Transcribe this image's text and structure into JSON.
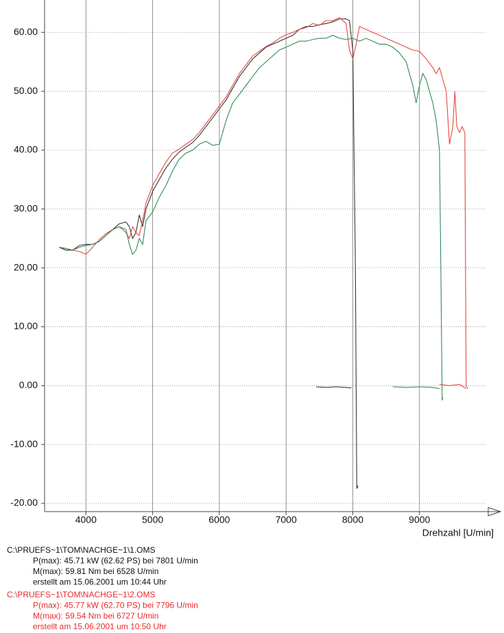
{
  "chart_data": {
    "type": "line",
    "x_label": "Drehzahl [U/min]",
    "xlim": [
      3380,
      10010
    ],
    "ylim": [
      -21.4,
      65.5
    ],
    "xticks": [
      4000,
      5000,
      6000,
      7000,
      8000,
      9000
    ],
    "yticks": [
      {
        "value": -20,
        "label": "-20.00"
      },
      {
        "value": -10,
        "label": "-10.00"
      },
      {
        "value": 0,
        "label": "0.00"
      },
      {
        "value": 10,
        "label": "10.00"
      },
      {
        "value": 20,
        "label": "20.00"
      },
      {
        "value": 30,
        "label": "30.00"
      },
      {
        "value": 40,
        "label": "40.00"
      },
      {
        "value": 50,
        "label": "50.00"
      },
      {
        "value": 60,
        "label": "60.00"
      }
    ],
    "grid": true,
    "series": [
      {
        "color": "#333333",
        "x": [
          3600,
          3700,
          3800,
          3900,
          4000,
          4100,
          4200,
          4300,
          4400,
          4500,
          4600,
          4650,
          4700,
          4750,
          4800,
          4850,
          4900,
          5000,
          5100,
          5200,
          5300,
          5400,
          5500,
          5600,
          5700,
          5800,
          5900,
          6000,
          6100,
          6200,
          6300,
          6400,
          6500,
          6600,
          6700,
          6800,
          6900,
          7000,
          7100,
          7200,
          7300,
          7400,
          7500,
          7600,
          7700,
          7800,
          7900,
          7950,
          8000,
          8040,
          8060,
          8080,
          null,
          7450,
          7600,
          7750,
          7900,
          7980
        ],
        "values": [
          23.5,
          23,
          23,
          23.8,
          24,
          24,
          24.5,
          25.5,
          26.5,
          27.5,
          27.8,
          27,
          25,
          26,
          29,
          27,
          30,
          33,
          35,
          37,
          38.5,
          39.7,
          40.5,
          41.3,
          42.5,
          44,
          45.5,
          47,
          48.5,
          50.5,
          52.5,
          54,
          55.5,
          56.5,
          57.5,
          58,
          58.5,
          59,
          59.5,
          60.5,
          61,
          61,
          61.3,
          61.5,
          61.8,
          62.3,
          62.3,
          62,
          57,
          20,
          -17.5,
          -17,
          null,
          -0.2,
          -0.3,
          -0.2,
          -0.3,
          -0.4
        ]
      },
      {
        "color": "#e8473c",
        "x": [
          3600,
          3700,
          3800,
          3900,
          4000,
          4100,
          4200,
          4300,
          4400,
          4500,
          4600,
          4650,
          4700,
          4750,
          4800,
          4850,
          4900,
          5000,
          5100,
          5200,
          5300,
          5400,
          5500,
          5600,
          5700,
          5800,
          5900,
          6000,
          6100,
          6200,
          6300,
          6400,
          6500,
          6600,
          6700,
          6800,
          6900,
          7000,
          7100,
          7200,
          7300,
          7400,
          7500,
          7600,
          7700,
          7800,
          7900,
          7950,
          8000,
          8050,
          8100,
          8200,
          8300,
          8400,
          8500,
          8600,
          8700,
          8800,
          8900,
          9000,
          9100,
          9200,
          9250,
          9300,
          9350,
          9400,
          9450,
          9500,
          9530,
          9560,
          9600,
          9640,
          9680,
          9700,
          9720,
          null,
          9300,
          9450,
          9600,
          9700
        ],
        "values": [
          23.5,
          23.3,
          23,
          22.8,
          22.3,
          23.5,
          24.8,
          25.8,
          26.5,
          27,
          26,
          25,
          27,
          26,
          25.5,
          28,
          31,
          34,
          36,
          38,
          39.5,
          40.2,
          41,
          41.8,
          43,
          44.5,
          46,
          47.5,
          49,
          51,
          53,
          54.5,
          56,
          56.8,
          57.6,
          58.2,
          59,
          59.6,
          60,
          60.5,
          60.8,
          61.5,
          61.2,
          62,
          62,
          62.5,
          61.5,
          57,
          55.5,
          58,
          61,
          60.5,
          60,
          59.5,
          59,
          58.5,
          58,
          57.5,
          57,
          56.8,
          55.5,
          54,
          53,
          54,
          52,
          50,
          41,
          44,
          50,
          44,
          43,
          44,
          43,
          0,
          -0.5,
          null,
          0.2,
          0,
          0.2,
          -0.5
        ]
      },
      {
        "color": "#2e8b57",
        "x": [
          3600,
          3700,
          3800,
          3900,
          4000,
          4100,
          4200,
          4300,
          4400,
          4500,
          4600,
          4650,
          4700,
          4750,
          4800,
          4850,
          4900,
          5000,
          5100,
          5200,
          5300,
          5400,
          5500,
          5600,
          5700,
          5800,
          5900,
          6000,
          6100,
          6200,
          6300,
          6400,
          6500,
          6600,
          6700,
          6800,
          6900,
          7000,
          7100,
          7200,
          7300,
          7400,
          7500,
          7600,
          7700,
          7800,
          7900,
          8000,
          8100,
          8200,
          8300,
          8400,
          8500,
          8600,
          8700,
          8800,
          8850,
          8900,
          8950,
          9000,
          9050,
          9100,
          9150,
          9200,
          9250,
          9300,
          9320,
          9340,
          9350,
          null,
          8600,
          8800,
          9000,
          9200,
          9300
        ],
        "values": [
          23.5,
          23.3,
          23,
          23.5,
          23.8,
          24,
          24.5,
          25.5,
          26.5,
          27,
          26.5,
          24,
          22.3,
          23,
          25,
          24,
          28,
          29.5,
          32,
          34,
          36.5,
          38.5,
          39.5,
          40,
          41,
          41.5,
          40.8,
          41,
          45,
          48,
          49.5,
          51,
          52.5,
          54,
          55,
          56,
          57,
          57.5,
          58,
          58.5,
          58.5,
          58.8,
          59,
          59,
          59.5,
          59,
          58.8,
          59,
          58.5,
          59,
          58.5,
          58,
          58,
          57.5,
          56.5,
          55,
          53,
          51,
          48,
          51,
          53,
          52,
          50,
          48,
          45,
          40,
          20,
          -2.5,
          -2,
          null,
          -0.2,
          -0.3,
          -0.2,
          -0.3,
          -0.5
        ]
      }
    ],
    "notes": [
      {
        "color": "#111111",
        "lines": [
          "C:\\PRUEFS~1\\TOM\\NACHGE~1\\1.OMS",
          "P(max): 45.71 kW (62.62 PS) bei 7801 U/min",
          "M(max): 59.81 Nm bei 6528 U/min",
          "erstellt am 15.06.2001 um 10:44 Uhr"
        ]
      },
      {
        "color": "#e8292b",
        "lines": [
          "C:\\PRUEFS~1\\TOM\\NACHGE~1\\2.OMS",
          "P(max): 45.77 kW (62.70 PS) bei 7796 U/min",
          "M(max): 59.54 Nm bei 6727 U/min",
          "erstellt am 15.06.2001 um 10:50 Uhr"
        ]
      }
    ]
  }
}
